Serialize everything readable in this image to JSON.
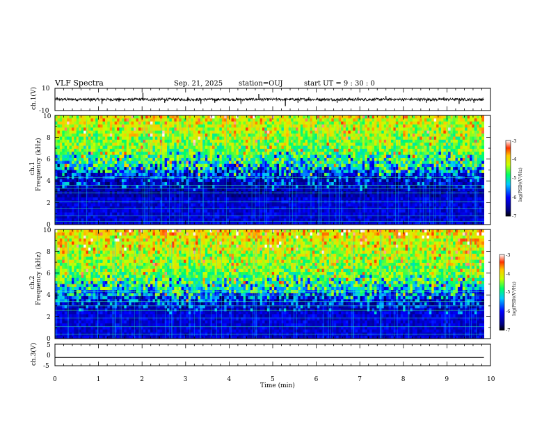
{
  "header": {
    "title": "VLF Spectra",
    "date": "Sep. 21, 2025",
    "station": "station=OUJ",
    "start": "start  UT =   9 : 30 : 0"
  },
  "colors": {
    "background": "#ffffff",
    "axis": "#000000",
    "trace": "#000000",
    "spectrogram_low": "#000080",
    "spectrogram_high": "#ff0000"
  },
  "chart_data": [
    {
      "type": "line",
      "name": "ch1-waveform",
      "ylabel": "ch.1(V)",
      "ylim": [
        -10,
        10
      ],
      "yticks": [
        "10",
        "-10"
      ],
      "xlim": [
        0,
        10
      ],
      "baseline": 0,
      "noise_band": [
        -1,
        1
      ],
      "spikes_min": [
        0.05,
        0.82,
        1.08,
        1.47,
        2.02,
        2.28,
        2.52,
        3.05,
        3.35,
        3.67,
        4.27,
        4.68,
        5.29,
        5.58,
        5.83,
        6.48,
        6.96,
        7.6,
        8.53,
        8.93,
        9.28,
        9.62
      ],
      "spikes_v": [
        2,
        -2,
        -4,
        -2,
        6,
        -2,
        -3,
        2,
        -4,
        -3,
        -4,
        5,
        -6,
        -3,
        2,
        -3,
        2,
        3,
        -3,
        2,
        -4,
        -3
      ]
    },
    {
      "type": "heatmap",
      "name": "ch1-spectrogram",
      "ylabel_line1": "ch.1",
      "ylabel_line2": "Frequency  (kHz)",
      "xlim": [
        0,
        9.85
      ],
      "ylim": [
        0,
        10
      ],
      "yticks": [
        "0",
        "2",
        "4",
        "6",
        "8",
        "10"
      ],
      "colorbar": {
        "label": "log(PSD)(V²/Hz)",
        "range": [
          -7,
          -3
        ],
        "ticks": [
          "-3",
          "-4",
          "-5",
          "-6",
          "-7"
        ]
      },
      "hiss_edge_khz": 5.5,
      "noise_lines_khz": [
        0.3,
        0.8,
        1.5,
        2.1,
        2.9,
        3.3,
        3.6,
        4.3
      ]
    },
    {
      "type": "heatmap",
      "name": "ch2-spectrogram",
      "ylabel_line1": "ch.2",
      "ylabel_line2": "Frequency  (kHz)",
      "xlim": [
        0,
        9.85
      ],
      "ylim": [
        0,
        10
      ],
      "yticks": [
        "0",
        "2",
        "4",
        "6",
        "8",
        "10"
      ],
      "colorbar": {
        "label": "log(PSD)(V²/Hz)",
        "range": [
          -7,
          -3
        ],
        "ticks": [
          "-3",
          "-4",
          "-5",
          "-6",
          "-7"
        ]
      },
      "hiss_edge_khz": 4.6,
      "noise_lines_khz": [
        0.4,
        1.1,
        1.9,
        2.6,
        3.0,
        3.4,
        4.0,
        4.3
      ]
    },
    {
      "type": "line",
      "name": "ch3-waveform",
      "ylabel": "ch.3(V)",
      "ylim": [
        -5,
        5
      ],
      "yticks": [
        "5",
        "0",
        "-5"
      ],
      "xlim": [
        0,
        10
      ],
      "baseline": -1.2,
      "noise_band": [
        -1.4,
        -1.0
      ]
    }
  ],
  "xaxis": {
    "label": "Time  (min)",
    "ticks": [
      "0",
      "1",
      "2",
      "3",
      "4",
      "5",
      "6",
      "7",
      "8",
      "9",
      "10"
    ],
    "xlim": [
      0,
      10
    ]
  }
}
